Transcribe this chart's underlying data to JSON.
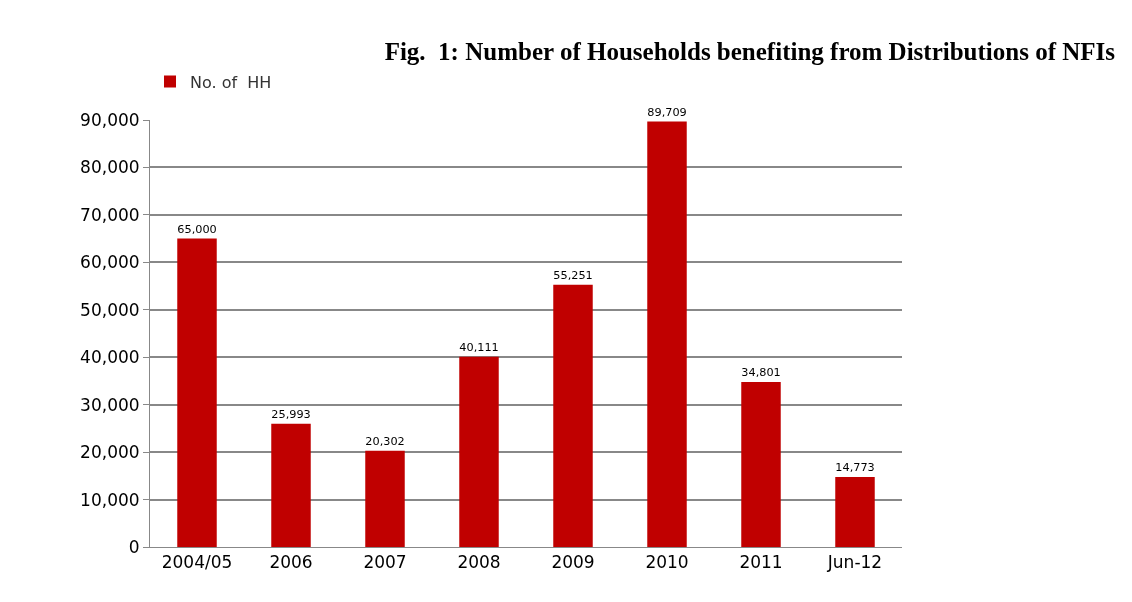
{
  "chart_data": {
    "type": "bar",
    "title": "Fig.  1: Number of Households benefiting from Distributions of NFIs",
    "categories": [
      "2004/05",
      "2006",
      "2007",
      "2008",
      "2009",
      "2010",
      "2011",
      "Jun-12"
    ],
    "series": [
      {
        "name": "No. of  HH",
        "color": "#c00000",
        "values": [
          65000,
          25993,
          20302,
          40111,
          55251,
          89709,
          34801,
          14773
        ],
        "value_labels": [
          "65,000",
          "25,993",
          "20,302",
          "40,111",
          "55,251",
          "89,709",
          "34,801",
          "14,773"
        ]
      }
    ],
    "ylim": [
      0,
      90000
    ],
    "yticks": [
      {
        "value": 0,
        "label": "0"
      },
      {
        "value": 10000,
        "label": "10,000"
      },
      {
        "value": 20000,
        "label": "20,000"
      },
      {
        "value": 30000,
        "label": "30,000"
      },
      {
        "value": 40000,
        "label": "40,000"
      },
      {
        "value": 50000,
        "label": "50,000"
      },
      {
        "value": 60000,
        "label": "60,000"
      },
      {
        "value": 70000,
        "label": "70,000"
      },
      {
        "value": 80000,
        "label": "80,000"
      },
      {
        "value": 90000,
        "label": "90,000"
      }
    ],
    "grid": "y",
    "legend": "top left"
  }
}
